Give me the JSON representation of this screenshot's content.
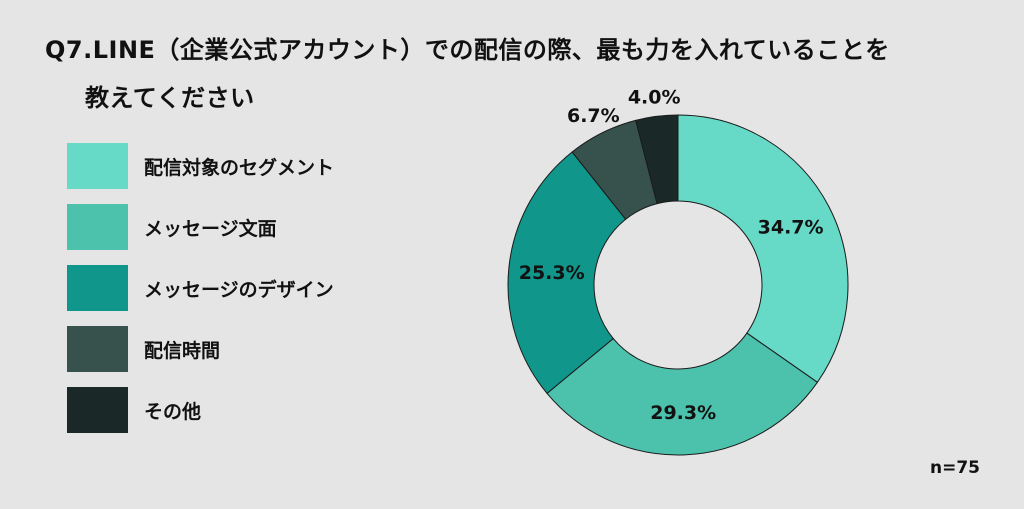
{
  "chart_data": {
    "type": "pie",
    "variant": "donut",
    "title_line1": "Q7.LINE（企業公式アカウント）での配信の際、最も力を入れていることを",
    "title_line2": "教えてください",
    "categories": [
      "配信対象のセグメント",
      "メッセージ文面",
      "メッセージのデザイン",
      "配信時間",
      "その他"
    ],
    "values": [
      34.7,
      29.3,
      25.3,
      6.7,
      4.0
    ],
    "labels": [
      "34.7%",
      "29.3%",
      "25.3%",
      "6.7%",
      "4.0%"
    ],
    "colors": [
      "#66d9c7",
      "#4cc2ad",
      "#10968a",
      "#37524d",
      "#1b2828"
    ],
    "legend_position": "left",
    "sample_size": "n=75"
  }
}
